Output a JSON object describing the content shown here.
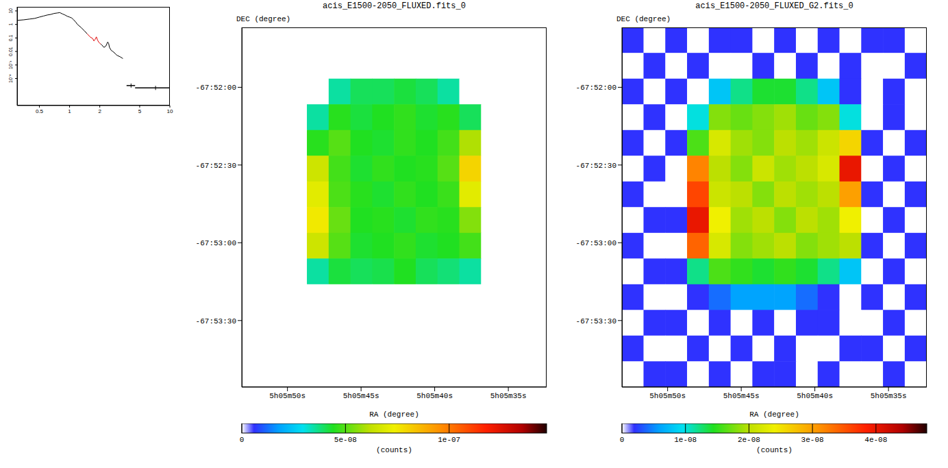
{
  "chart_data": [
    {
      "type": "line",
      "log": true,
      "xlim": [
        0.3,
        10
      ],
      "xticks": [
        0.5,
        1,
        2,
        5,
        10
      ],
      "ylim": [
        1e-06,
        20
      ],
      "yticks": [
        {
          "value": 0.0001,
          "label": "10⁻⁴"
        },
        {
          "value": 0.001,
          "label": "10⁻³"
        },
        0.01,
        0.1,
        1,
        10
      ],
      "series": [
        {
          "type": "line",
          "color": "#000000",
          "x": [
            0.3,
            0.35,
            0.4,
            0.45,
            0.5,
            0.55,
            0.6,
            0.65,
            0.7,
            0.75,
            0.8,
            0.85,
            0.9,
            0.95,
            1.0,
            1.05,
            1.1,
            1.15,
            1.2,
            1.3,
            1.4,
            1.5
          ],
          "values": [
            2,
            2.2,
            2.5,
            2.8,
            3.5,
            4.2,
            5,
            5.5,
            6.5,
            7,
            7.5,
            6,
            5,
            4,
            3.5,
            3,
            2.2,
            1.5,
            1,
            0.6,
            0.35,
            0.2
          ]
        },
        {
          "type": "line",
          "color": "#e00000",
          "x": [
            1.5,
            1.6,
            1.7,
            1.75,
            1.8,
            1.85,
            1.9,
            1.95,
            2.0,
            2.05
          ],
          "values": [
            0.2,
            0.12,
            0.09,
            0.06,
            0.08,
            0.12,
            0.07,
            0.05,
            0.04,
            0.035
          ]
        },
        {
          "type": "line",
          "color": "#000000",
          "x": [
            2.05,
            2.1,
            2.2,
            2.3,
            2.4,
            2.45,
            2.5,
            2.6,
            2.7,
            2.8,
            2.9,
            3.0,
            3.2,
            3.4
          ],
          "values": [
            0.035,
            0.03,
            0.02,
            0.025,
            0.05,
            0.04,
            0.02,
            0.012,
            0.01,
            0.008,
            0.006,
            0.005,
            0.004,
            0.003
          ]
        },
        {
          "type": "scatter",
          "color": "#000000",
          "x": [
            4.1,
            7.2
          ],
          "values": [
            3e-05,
            2e-05
          ],
          "x_err": [
            [
              0.4,
              0.4
            ],
            [
              2.7,
              2.8
            ]
          ]
        }
      ]
    },
    {
      "type": "heatmap",
      "title": "acis_E1500-2050_FLUXED.fits_0",
      "x_label": "RA (degree)",
      "y_label": "DEC (degree)",
      "xlim": [
        76.47125,
        76.385
      ],
      "xticks": [
        {
          "value": 76.45833,
          "label": "5h05m50s"
        },
        {
          "value": 76.4375,
          "label": "5h05m45s"
        },
        {
          "value": 76.41667,
          "label": "5h05m40s"
        },
        {
          "value": 76.39583,
          "label": "5h05m35s"
        }
      ],
      "ylim": [
        -67.89881,
        -67.86025
      ],
      "yticks": [
        {
          "value": -67.86667,
          "label": "-67:52:00"
        },
        {
          "value": -67.875,
          "label": "-67:52:30"
        },
        {
          "value": -67.88333,
          "label": "-67:53:00"
        },
        {
          "value": -67.89167,
          "label": "-67:53:30"
        }
      ],
      "x": [
        76.46817,
        76.46201,
        76.45585,
        76.44969,
        76.44353,
        76.43737,
        76.43121,
        76.42505,
        76.41889,
        76.41273,
        76.40657,
        76.40041,
        76.39425,
        76.38809
      ],
      "y": [
        -67.86163,
        -67.86438,
        -67.86714,
        -67.86989,
        -67.87265,
        -67.8754,
        -67.87816,
        -67.88091,
        -67.88367,
        -67.88642,
        -67.88918,
        -67.89193,
        -67.89468,
        -67.89744
      ],
      "cells": [
        [
          0,
          0,
          0,
          0,
          0,
          0,
          0,
          0,
          0,
          0,
          0,
          0,
          0,
          0
        ],
        [
          0,
          0,
          0,
          0,
          0,
          0,
          0,
          0,
          0,
          0,
          0,
          0,
          0,
          0
        ],
        [
          0,
          0,
          0,
          0,
          3.5e-08,
          4e-08,
          4e-08,
          4.2e-08,
          4e-08,
          3.5e-08,
          0,
          0,
          0,
          0
        ],
        [
          0,
          0,
          0,
          3.5e-08,
          4.5e-08,
          4.2e-08,
          4.4e-08,
          4.6e-08,
          4.3e-08,
          4.5e-08,
          4e-08,
          0,
          0,
          0
        ],
        [
          0,
          0,
          0,
          4.5e-08,
          5e-08,
          4.4e-08,
          4.3e-08,
          4.6e-08,
          4.4e-08,
          4.8e-08,
          6e-08,
          0,
          0,
          0
        ],
        [
          0,
          0,
          0,
          6.5e-08,
          4.8e-08,
          4.3e-08,
          4.6e-08,
          4.4e-08,
          4.5e-08,
          5e-08,
          8e-08,
          0,
          0,
          0
        ],
        [
          0,
          0,
          0,
          7e-08,
          4.9e-08,
          4.5e-08,
          4.3e-08,
          4.6e-08,
          4.4e-08,
          4.7e-08,
          7e-08,
          0,
          0,
          0
        ],
        [
          0,
          0,
          0,
          7.5e-08,
          5.2e-08,
          4.4e-08,
          4.5e-08,
          4.3e-08,
          4.6e-08,
          4.5e-08,
          5.5e-08,
          0,
          0,
          0
        ],
        [
          0,
          0,
          0,
          6.5e-08,
          5e-08,
          4.3e-08,
          4.4e-08,
          4.6e-08,
          4.3e-08,
          4.4e-08,
          4.8e-08,
          0,
          0,
          0
        ],
        [
          0,
          0,
          0,
          3.5e-08,
          4.2e-08,
          4e-08,
          4.1e-08,
          4.4e-08,
          4e-08,
          3.8e-08,
          3.5e-08,
          0,
          0,
          0
        ],
        [
          0,
          0,
          0,
          0,
          0,
          0,
          0,
          0,
          0,
          0,
          0,
          0,
          0,
          0
        ],
        [
          0,
          0,
          0,
          0,
          0,
          0,
          0,
          0,
          0,
          0,
          0,
          0,
          0,
          0
        ],
        [
          0,
          0,
          0,
          0,
          0,
          0,
          0,
          0,
          0,
          0,
          0,
          0,
          0,
          0
        ],
        [
          0,
          0,
          0,
          0,
          0,
          0,
          0,
          0,
          0,
          0,
          0,
          0,
          0,
          0
        ]
      ],
      "colorbar": {
        "range": [
          0,
          1.47e-07
        ],
        "ticks": [
          0,
          {
            "value": 5e-08,
            "label": "5e-08"
          },
          {
            "value": 1e-07,
            "label": "1e-07"
          }
        ],
        "label": "(counts)"
      }
    },
    {
      "type": "heatmap",
      "title": "acis_E1500-2050_FLUXED_G2.fits_0",
      "x_label": "RA (degree)",
      "y_label": "DEC (degree)",
      "xlim": [
        76.47125,
        76.385
      ],
      "xticks": [
        {
          "value": 76.45833,
          "label": "5h05m50s"
        },
        {
          "value": 76.4375,
          "label": "5h05m45s"
        },
        {
          "value": 76.41667,
          "label": "5h05m40s"
        },
        {
          "value": 76.39583,
          "label": "5h05m35s"
        }
      ],
      "ylim": [
        -67.89881,
        -67.86025
      ],
      "yticks": [
        {
          "value": -67.86667,
          "label": "-67:52:00"
        },
        {
          "value": -67.875,
          "label": "-67:52:30"
        },
        {
          "value": -67.88333,
          "label": "-67:53:00"
        },
        {
          "value": -67.89167,
          "label": "-67:53:30"
        }
      ],
      "x": [
        76.46817,
        76.46201,
        76.45585,
        76.44969,
        76.44353,
        76.43737,
        76.43121,
        76.42505,
        76.41889,
        76.41273,
        76.40657,
        76.40041,
        76.39425,
        76.38809
      ],
      "y": [
        -67.86163,
        -67.86438,
        -67.86714,
        -67.86989,
        -67.87265,
        -67.8754,
        -67.87816,
        -67.88091,
        -67.88367,
        -67.88642,
        -67.88918,
        -67.89193,
        -67.89468,
        -67.89744
      ],
      "cells": [
        [
          2e-09,
          0,
          2e-09,
          0,
          2e-09,
          2e-09,
          0,
          2e-09,
          0,
          2e-09,
          0,
          2e-09,
          2e-09,
          0
        ],
        [
          0,
          2e-09,
          0,
          2e-09,
          0,
          0,
          2e-09,
          0,
          2e-09,
          0,
          2e-09,
          0,
          0,
          2e-09
        ],
        [
          2e-09,
          0,
          2e-09,
          0,
          8e-09,
          1.2e-08,
          1.4e-08,
          1.4e-08,
          1.2e-08,
          8e-09,
          2e-09,
          0,
          2e-09,
          0
        ],
        [
          0,
          2e-09,
          0,
          1e-08,
          1.8e-08,
          1.7e-08,
          1.8e-08,
          1.9e-08,
          1.7e-08,
          1.8e-08,
          1e-08,
          0,
          2e-09,
          0
        ],
        [
          2e-09,
          0,
          2e-09,
          1.6e-08,
          2.2e-08,
          1.9e-08,
          1.8e-08,
          2e-08,
          1.9e-08,
          2.1e-08,
          2.6e-08,
          2e-09,
          0,
          2e-09
        ],
        [
          0,
          2e-09,
          0,
          3.2e-08,
          2e-08,
          1.8e-08,
          2.1e-08,
          1.9e-08,
          2e-08,
          2.2e-08,
          4e-08,
          0,
          2e-09,
          0
        ],
        [
          2e-09,
          0,
          0,
          3.6e-08,
          2.1e-08,
          2e-08,
          1.8e-08,
          2e-08,
          1.9e-08,
          2e-08,
          3e-08,
          2e-09,
          0,
          2e-09
        ],
        [
          0,
          2e-09,
          2e-09,
          4e-08,
          2.4e-08,
          1.9e-08,
          2e-08,
          1.8e-08,
          2e-08,
          1.9e-08,
          2.4e-08,
          0,
          2e-09,
          0
        ],
        [
          2e-09,
          0,
          0,
          3.4e-08,
          2.2e-08,
          1.8e-08,
          1.9e-08,
          2e-08,
          1.8e-08,
          1.9e-08,
          2e-08,
          2e-09,
          0,
          2e-09
        ],
        [
          0,
          2e-09,
          2e-09,
          1.2e-08,
          1.6e-08,
          1.5e-08,
          1.4e-08,
          1.5e-08,
          1.4e-08,
          1.2e-08,
          8e-09,
          0,
          2e-09,
          0
        ],
        [
          2e-09,
          0,
          0,
          2e-09,
          4e-09,
          6e-09,
          6e-09,
          6e-09,
          4e-09,
          2e-09,
          0,
          2e-09,
          0,
          2e-09
        ],
        [
          0,
          2e-09,
          2e-09,
          0,
          2e-09,
          0,
          2e-09,
          0,
          2e-09,
          2e-09,
          0,
          0,
          2e-09,
          0
        ],
        [
          2e-09,
          0,
          0,
          2e-09,
          0,
          2e-09,
          0,
          2e-09,
          0,
          0,
          2e-09,
          2e-09,
          0,
          2e-09
        ],
        [
          0,
          2e-09,
          2e-09,
          0,
          2e-09,
          0,
          2e-09,
          2e-09,
          0,
          2e-09,
          0,
          0,
          2e-09,
          0
        ]
      ],
      "colorbar": {
        "range": [
          0,
          4.8e-08
        ],
        "ticks": [
          0,
          {
            "value": 1e-08,
            "label": "1e-08"
          },
          {
            "value": 2e-08,
            "label": "2e-08"
          },
          {
            "value": 3e-08,
            "label": "3e-08"
          },
          {
            "value": 4e-08,
            "label": "4e-08"
          }
        ],
        "label": "(counts)"
      }
    }
  ]
}
